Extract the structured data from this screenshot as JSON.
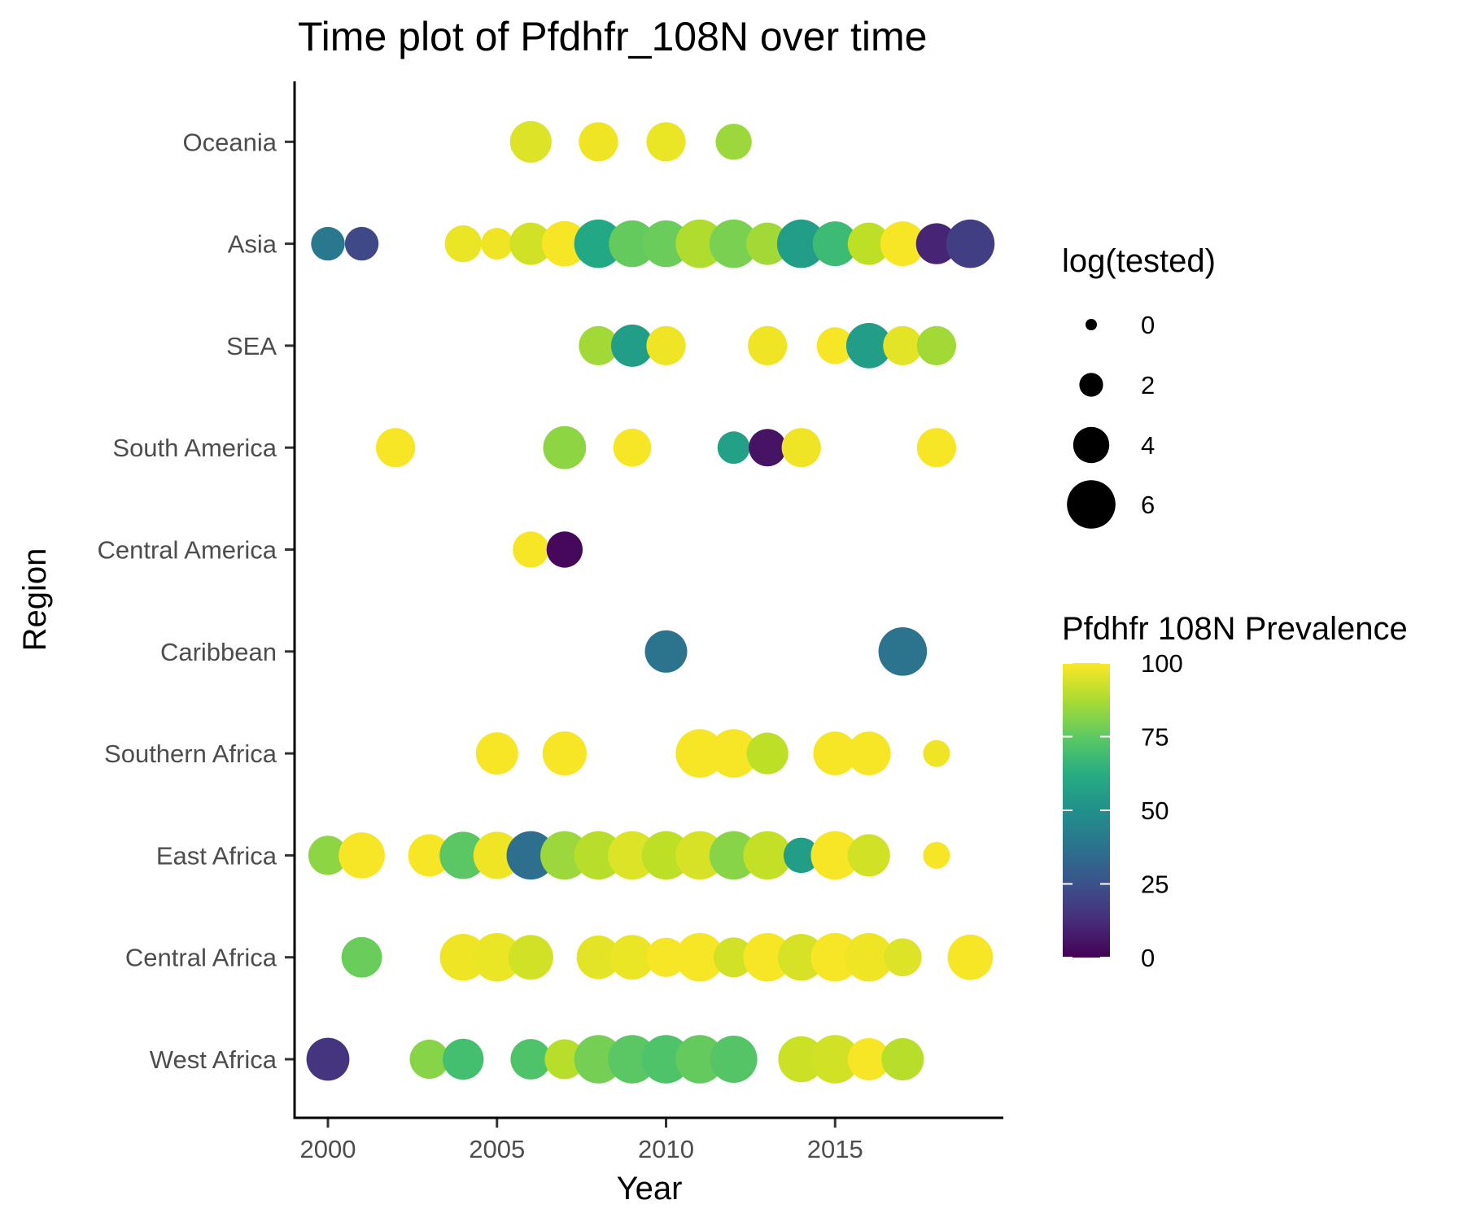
{
  "chart_data": {
    "type": "scatter",
    "title": "Time plot of Pfdhfr_108N over time",
    "xlabel": "Year",
    "ylabel": "Region",
    "xlim": [
      1999.1,
      2019.9
    ],
    "x_ticks": [
      2000,
      2005,
      2010,
      2015
    ],
    "categories": [
      "West Africa",
      "Central Africa",
      "East Africa",
      "Southern Africa",
      "Caribbean",
      "Central America",
      "South America",
      "SEA",
      "Asia",
      "Oceania"
    ],
    "grid": false,
    "size_legend": {
      "title": "log(tested)",
      "values": [
        0,
        2,
        4,
        6
      ]
    },
    "color_legend": {
      "title": "Pfdhfr 108N Prevalence",
      "ticks": [
        0,
        25,
        50,
        75,
        100
      ],
      "range": [
        0,
        100
      ],
      "colormap": "viridis",
      "colors": [
        "#440154",
        "#3b528b",
        "#21908c",
        "#5dc963",
        "#fde725"
      ]
    },
    "series": [
      {
        "region": "Oceania",
        "points": [
          [
            2006,
            95,
            4.9
          ],
          [
            2008,
            98,
            4.5
          ],
          [
            2010,
            97,
            4.5
          ],
          [
            2012,
            85,
            4.0
          ]
        ]
      },
      {
        "region": "Asia",
        "points": [
          [
            2000,
            40,
            3.6
          ],
          [
            2001,
            22,
            3.6
          ],
          [
            2004,
            97,
            4.1
          ],
          [
            2005,
            98,
            3.3
          ],
          [
            2006,
            93,
            5.0
          ],
          [
            2007,
            99,
            5.5
          ],
          [
            2008,
            60,
            6.0
          ],
          [
            2009,
            76,
            5.7
          ],
          [
            2010,
            77,
            5.7
          ],
          [
            2011,
            88,
            6.0
          ],
          [
            2012,
            80,
            6.0
          ],
          [
            2013,
            86,
            5.0
          ],
          [
            2014,
            55,
            6.0
          ],
          [
            2015,
            68,
            5.4
          ],
          [
            2016,
            90,
            5.0
          ],
          [
            2017,
            99,
            5.4
          ],
          [
            2018,
            10,
            4.8
          ],
          [
            2019,
            18,
            6.0
          ]
        ]
      },
      {
        "region": "SEA",
        "points": [
          [
            2008,
            86,
            4.5
          ],
          [
            2009,
            55,
            5.0
          ],
          [
            2010,
            98,
            4.5
          ],
          [
            2013,
            98,
            4.5
          ],
          [
            2015,
            99,
            4.1
          ],
          [
            2016,
            55,
            5.5
          ],
          [
            2017,
            96,
            4.5
          ],
          [
            2018,
            86,
            4.5
          ]
        ]
      },
      {
        "region": "South America",
        "points": [
          [
            2002,
            99,
            4.5
          ],
          [
            2007,
            83,
            5.1
          ],
          [
            2009,
            99,
            4.3
          ],
          [
            2012,
            57,
            3.4
          ],
          [
            2013,
            5,
            4.2
          ],
          [
            2014,
            98,
            4.5
          ],
          [
            2018,
            99,
            4.5
          ]
        ]
      },
      {
        "region": "Central America",
        "points": [
          [
            2006,
            99,
            4.0
          ],
          [
            2007,
            2,
            4.0
          ]
        ]
      },
      {
        "region": "Caribbean",
        "points": [
          [
            2010,
            38,
            5.0
          ],
          [
            2017,
            38,
            6.0
          ]
        ]
      },
      {
        "region": "Southern Africa",
        "points": [
          [
            2005,
            99,
            5.0
          ],
          [
            2007,
            99,
            5.3
          ],
          [
            2011,
            99,
            6.0
          ],
          [
            2012,
            99,
            6.0
          ],
          [
            2013,
            90,
            4.9
          ],
          [
            2015,
            99,
            5.2
          ],
          [
            2016,
            99,
            5.2
          ],
          [
            2018,
            98,
            2.5
          ]
        ]
      },
      {
        "region": "East Africa",
        "points": [
          [
            2000,
            83,
            4.5
          ],
          [
            2001,
            99,
            5.6
          ],
          [
            2003,
            99,
            5.0
          ],
          [
            2004,
            74,
            5.8
          ],
          [
            2005,
            98,
            5.8
          ],
          [
            2006,
            36,
            6.0
          ],
          [
            2007,
            85,
            6.0
          ],
          [
            2008,
            89,
            6.0
          ],
          [
            2009,
            95,
            6.0
          ],
          [
            2010,
            90,
            6.0
          ],
          [
            2011,
            94,
            6.0
          ],
          [
            2012,
            82,
            6.0
          ],
          [
            2013,
            91,
            6.0
          ],
          [
            2014,
            55,
            3.9
          ],
          [
            2015,
            99,
            6.0
          ],
          [
            2016,
            93,
            5.0
          ],
          [
            2018,
            99,
            2.5
          ]
        ]
      },
      {
        "region": "Central Africa",
        "points": [
          [
            2001,
            77,
            4.7
          ],
          [
            2004,
            98,
            5.7
          ],
          [
            2005,
            97,
            6.0
          ],
          [
            2006,
            93,
            5.4
          ],
          [
            2008,
            96,
            5.2
          ],
          [
            2009,
            97,
            5.4
          ],
          [
            2010,
            99,
            4.5
          ],
          [
            2011,
            99,
            6.0
          ],
          [
            2012,
            93,
            4.6
          ],
          [
            2013,
            99,
            6.0
          ],
          [
            2014,
            94,
            5.7
          ],
          [
            2015,
            99,
            6.0
          ],
          [
            2016,
            98,
            6.0
          ],
          [
            2017,
            95,
            4.3
          ],
          [
            2019,
            99,
            5.5
          ]
        ]
      },
      {
        "region": "West Africa",
        "points": [
          [
            2000,
            15,
            5.1
          ],
          [
            2003,
            82,
            4.5
          ],
          [
            2004,
            70,
            4.8
          ],
          [
            2006,
            72,
            4.7
          ],
          [
            2007,
            89,
            4.6
          ],
          [
            2008,
            79,
            6.0
          ],
          [
            2009,
            74,
            6.0
          ],
          [
            2010,
            72,
            6.0
          ],
          [
            2011,
            76,
            6.0
          ],
          [
            2012,
            73,
            5.8
          ],
          [
            2014,
            92,
            5.6
          ],
          [
            2015,
            93,
            6.0
          ],
          [
            2016,
            99,
            5.0
          ],
          [
            2017,
            89,
            5.0
          ]
        ]
      }
    ]
  }
}
